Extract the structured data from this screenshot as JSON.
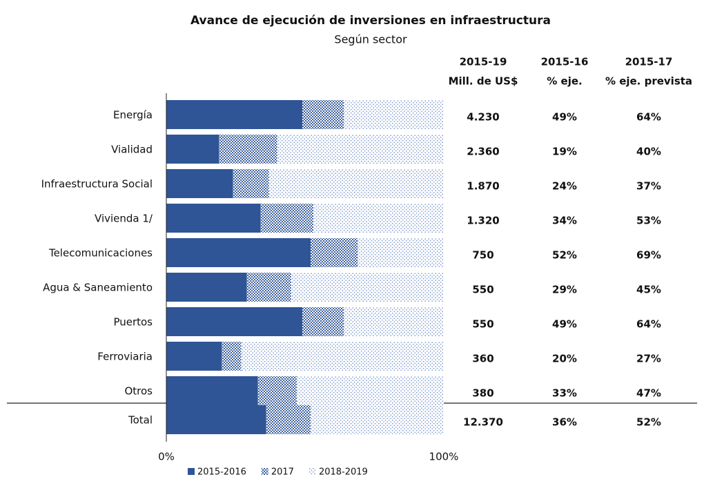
{
  "chart_data": {
    "type": "stacked_bar_horizontal",
    "title": "Avance de ejecución de inversiones en infraestructura",
    "subtitle": "Según sector",
    "categories": [
      "Energía",
      "Vialidad",
      "Infraestructura Social",
      "Vivienda 1/",
      "Telecomunicaciones",
      "Agua & Saneamiento",
      "Puertos",
      "Ferroviaria",
      "Otros",
      "Total"
    ],
    "series": [
      {
        "name": "2015-2016",
        "color": "#2f5597",
        "pattern": "solid",
        "values": [
          49,
          19,
          24,
          34,
          52,
          29,
          49,
          20,
          33,
          36
        ]
      },
      {
        "name": "2017",
        "color": "#2f5597",
        "pattern": "dense-dots",
        "values": [
          15,
          21,
          13,
          19,
          17,
          16,
          15,
          7,
          14,
          16
        ]
      },
      {
        "name": "2018-2019",
        "color": "#6f8fc7",
        "pattern": "sparse-dots",
        "values": [
          36,
          60,
          63,
          47,
          31,
          55,
          36,
          73,
          53,
          48
        ]
      }
    ],
    "xlim": [
      0,
      100
    ],
    "xticks": [
      {
        "value": 0,
        "label": "0%"
      },
      {
        "value": 100,
        "label": "100%"
      }
    ],
    "columns": [
      {
        "header": [
          "2015-19",
          "Mill. de US$"
        ],
        "values": [
          4230,
          2360,
          1870,
          1320,
          750,
          550,
          550,
          360,
          380,
          12370
        ],
        "value_labels": [
          "4.230",
          "2.360",
          "1.870",
          "1.320",
          "750",
          "550",
          "550",
          "360",
          "380",
          "12.370"
        ]
      },
      {
        "header": [
          "2015-16",
          "% eje."
        ],
        "values": [
          49,
          19,
          24,
          34,
          52,
          29,
          49,
          20,
          33,
          36
        ],
        "value_labels": [
          "49%",
          "19%",
          "24%",
          "34%",
          "52%",
          "29%",
          "49%",
          "20%",
          "33%",
          "36%"
        ]
      },
      {
        "header": [
          "2015-17",
          "% eje. prevista"
        ],
        "values": [
          64,
          40,
          37,
          53,
          69,
          45,
          64,
          27,
          47,
          52
        ],
        "value_labels": [
          "64%",
          "40%",
          "37%",
          "53%",
          "69%",
          "45%",
          "64%",
          "27%",
          "47%",
          "52%"
        ]
      }
    ]
  }
}
